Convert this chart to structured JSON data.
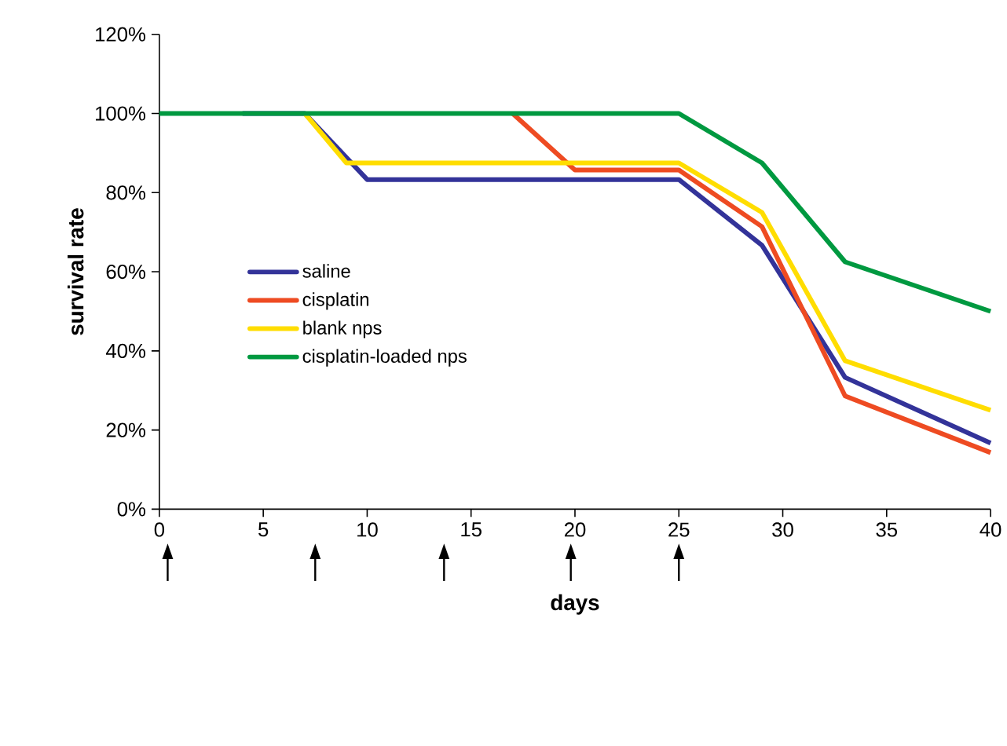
{
  "chart_data": {
    "type": "line",
    "xlabel": "days",
    "ylabel": "survival rate",
    "xlim": [
      0,
      40
    ],
    "xticks": [
      0,
      5,
      10,
      15,
      20,
      25,
      30,
      35,
      40
    ],
    "ylim": [
      0,
      120
    ],
    "yticks": [
      {
        "value": 0,
        "label": "0%"
      },
      {
        "value": 20,
        "label": "20%"
      },
      {
        "value": 40,
        "label": "40%"
      },
      {
        "value": 60,
        "label": "60%"
      },
      {
        "value": 80,
        "label": "80%"
      },
      {
        "value": 100,
        "label": "100%"
      },
      {
        "value": 120,
        "label": "120%"
      }
    ],
    "grid": false,
    "legend": "left",
    "marker": "none",
    "line_style": "solid",
    "series": [
      {
        "name": "saline",
        "color": "#333399",
        "x": [
          4,
          7,
          10,
          25,
          29,
          33,
          40
        ],
        "values": [
          100,
          100,
          83.3,
          83.3,
          66.7,
          33.3,
          16.7
        ]
      },
      {
        "name": "cisplatin",
        "color": "#ee4b22",
        "x": [
          17,
          20,
          25,
          29,
          33,
          40
        ],
        "values": [
          100,
          85.7,
          85.7,
          71.4,
          28.6,
          14.3
        ]
      },
      {
        "name": "blank nps",
        "color": "#ffdd00",
        "x": [
          7,
          9,
          25,
          29,
          33,
          40
        ],
        "values": [
          100,
          87.5,
          87.5,
          75,
          37.5,
          25
        ]
      },
      {
        "name": "cisplatin-loaded nps",
        "color": "#009940",
        "x": [
          0,
          25,
          29,
          33,
          40
        ],
        "values": [
          100,
          100,
          87.5,
          62.5,
          50
        ]
      }
    ]
  }
}
